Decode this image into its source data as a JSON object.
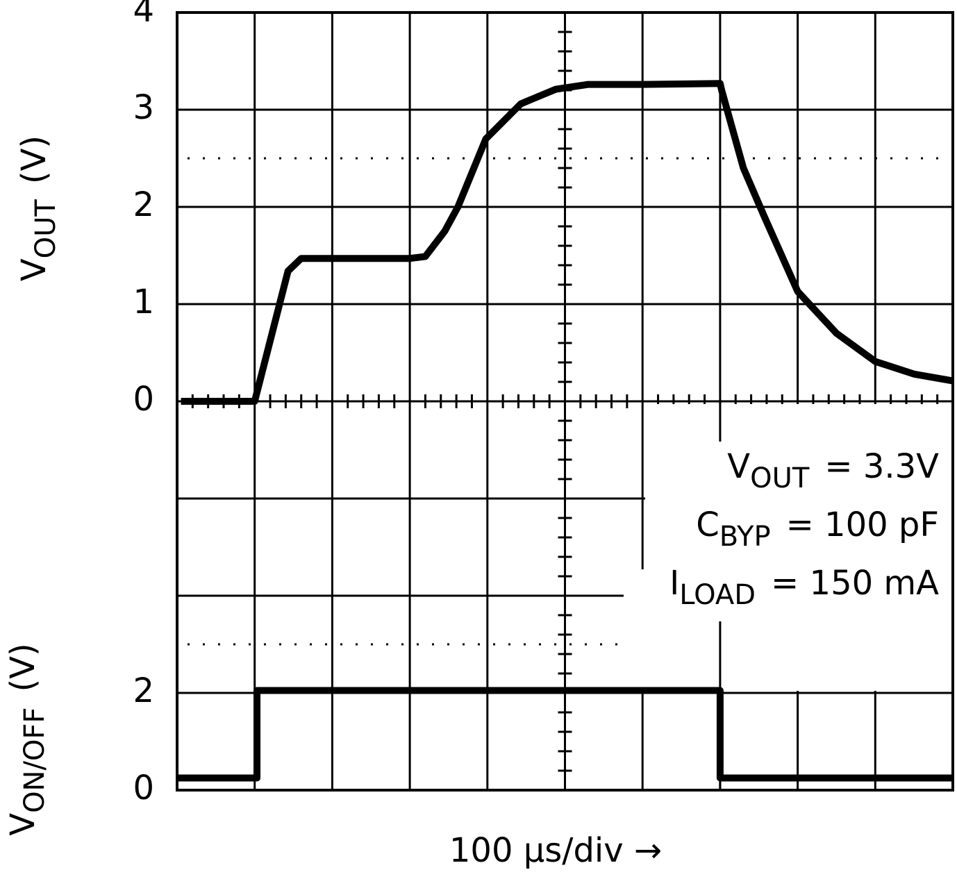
{
  "chart_data": {
    "type": "line",
    "y_label": {
      "main": "V",
      "sub": "OUT",
      "unit": "(V)"
    },
    "y2_label": {
      "main": "V",
      "sub": "ON/OFF",
      "unit": "(V)"
    },
    "x_label": "100 µs/div →",
    "xlim": [
      0,
      1000
    ],
    "xticks": [
      0,
      100,
      200,
      300,
      400,
      500,
      600,
      700,
      800,
      900,
      1000
    ],
    "ylim": [
      -4,
      4
    ],
    "yticks": [
      0,
      1,
      2,
      3,
      4
    ],
    "y2lim": [
      0,
      16
    ],
    "y2ticks": [
      0,
      2
    ],
    "grid": true,
    "dotted_lines": [
      {
        "value": 2.5,
        "axis": "y"
      },
      {
        "value": 3,
        "axis": "y2"
      }
    ],
    "annotations": [
      {
        "main": "V",
        "sub": "OUT",
        "rest": "= 3.3V"
      },
      {
        "main": "C",
        "sub": "BYP",
        "rest": "= 100 pF"
      },
      {
        "main": "I",
        "sub": "LOAD",
        "rest": "= 150 mA"
      }
    ],
    "series": [
      {
        "color": "#000000",
        "axis": "y",
        "x": [
          5,
          100,
          143,
          160,
          200,
          300,
          320,
          345,
          362,
          398,
          443,
          488,
          530,
          600,
          700,
          702,
          730,
          757,
          800,
          850,
          900,
          950,
          1000
        ],
        "values": [
          0,
          0,
          1.34,
          1.47,
          1.47,
          1.47,
          1.49,
          1.75,
          2.0,
          2.7,
          3.06,
          3.21,
          3.26,
          3.26,
          3.27,
          3.2,
          2.4,
          1.9,
          1.13,
          0.7,
          0.41,
          0.28,
          0.21
        ]
      },
      {
        "color": "#000000",
        "axis": "y2",
        "x": [
          0,
          103,
          103,
          700,
          700,
          1000
        ],
        "values": [
          0.25,
          0.25,
          2.05,
          2.05,
          0.25,
          0.25
        ]
      }
    ]
  }
}
